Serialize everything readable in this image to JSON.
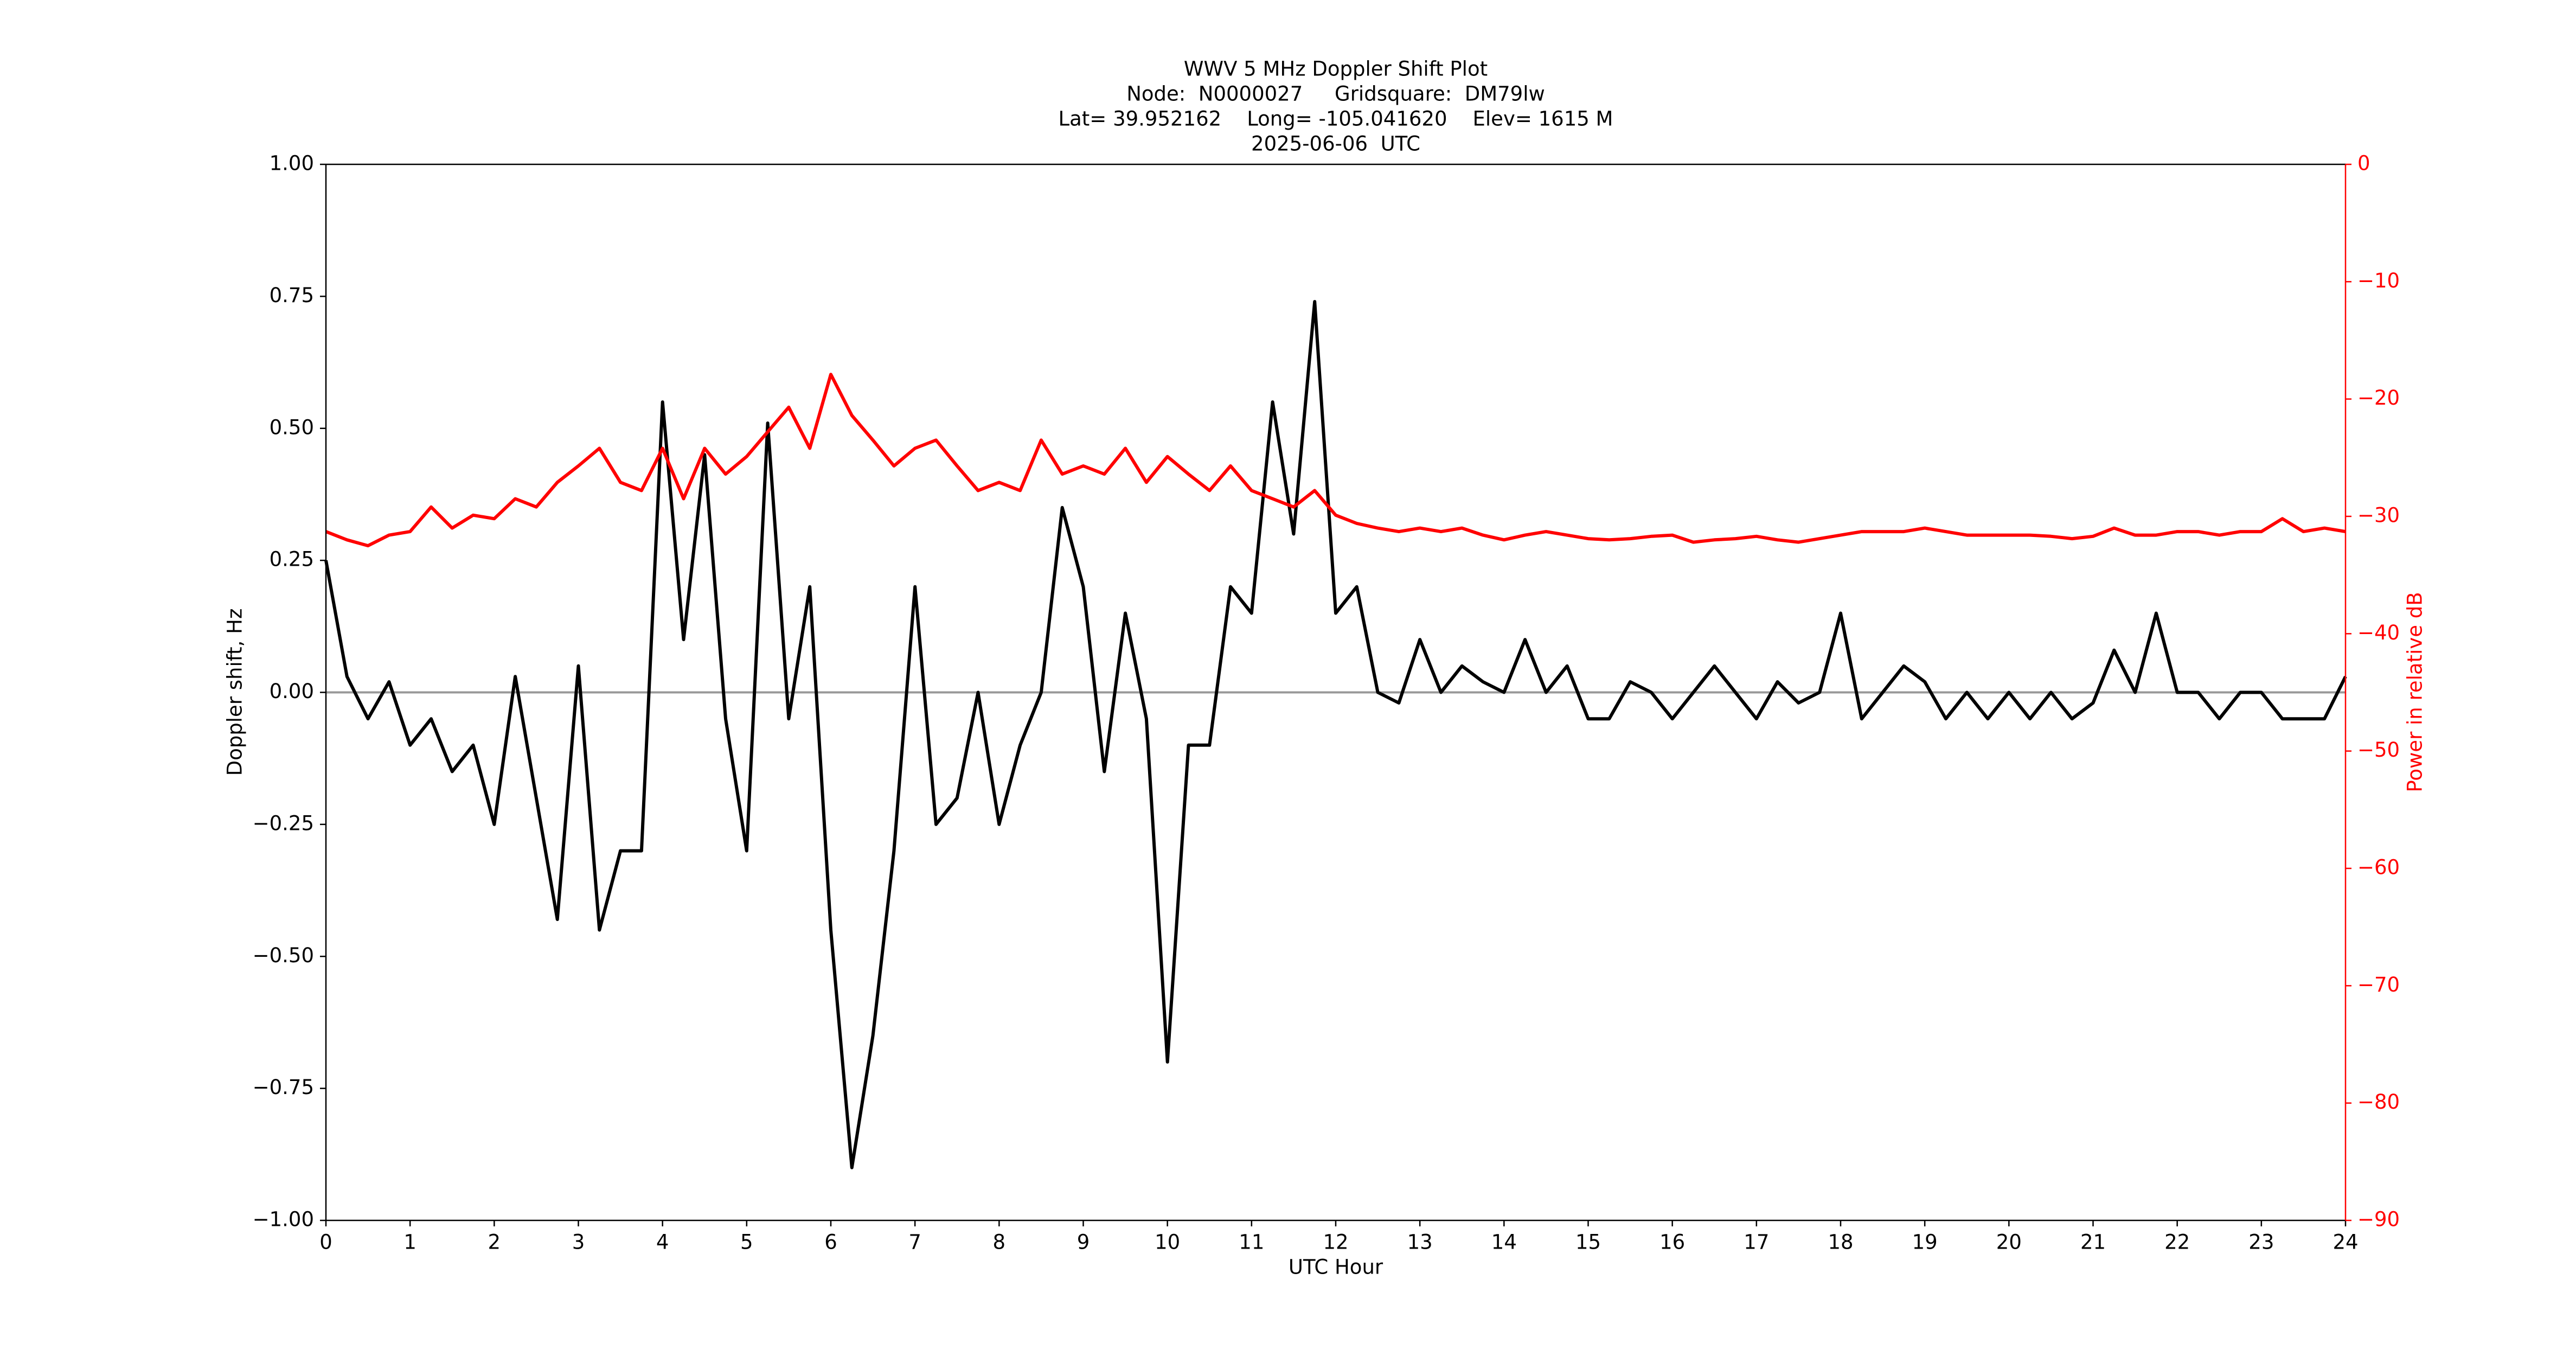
{
  "chart_data": {
    "type": "line",
    "title": "WWV 5 MHz Doppler Shift Plot",
    "subtitle": [
      "Node:  N0000027     Gridsquare:  DM79lw",
      "Lat= 39.952162    Long= -105.041620    Elev= 1615 M",
      "2025-06-06  UTC"
    ],
    "xlabel": "UTC Hour",
    "ylabel": "Doppler shift, Hz",
    "y2label": "Power in relative dB",
    "y2_color": "#ff0000",
    "xlim": [
      0,
      24
    ],
    "xticks": [
      0,
      1,
      2,
      3,
      4,
      5,
      6,
      7,
      8,
      9,
      10,
      11,
      12,
      13,
      14,
      15,
      16,
      17,
      18,
      19,
      20,
      21,
      22,
      23,
      24
    ],
    "ylim": [
      -1,
      1
    ],
    "yticks": [
      {
        "value": -1,
        "label": "−1.00"
      },
      {
        "value": -0.75,
        "label": "−0.75"
      },
      {
        "value": -0.5,
        "label": "−0.50"
      },
      {
        "value": -0.25,
        "label": "−0.25"
      },
      {
        "value": 0,
        "label": "0.00"
      },
      {
        "value": 0.25,
        "label": "0.25"
      },
      {
        "value": 0.5,
        "label": "0.50"
      },
      {
        "value": 0.75,
        "label": "0.75"
      },
      {
        "value": 1,
        "label": "1.00"
      }
    ],
    "y2lim": [
      -90,
      0
    ],
    "y2ticks": [
      {
        "value": -90,
        "label": "−90"
      },
      {
        "value": -80,
        "label": "−80"
      },
      {
        "value": -70,
        "label": "−70"
      },
      {
        "value": -60,
        "label": "−60"
      },
      {
        "value": -50,
        "label": "−50"
      },
      {
        "value": -40,
        "label": "−40"
      },
      {
        "value": -30,
        "label": "−30"
      },
      {
        "value": -20,
        "label": "−20"
      },
      {
        "value": -10,
        "label": "−10"
      },
      0
    ],
    "x": [
      0,
      0.25,
      0.5,
      0.75,
      1,
      1.25,
      1.5,
      1.75,
      2,
      2.25,
      2.5,
      2.75,
      3,
      3.25,
      3.5,
      3.75,
      4,
      4.25,
      4.5,
      4.75,
      5,
      5.25,
      5.5,
      5.75,
      6,
      6.25,
      6.5,
      6.75,
      7,
      7.25,
      7.5,
      7.75,
      8,
      8.25,
      8.5,
      8.75,
      9,
      9.25,
      9.5,
      9.75,
      10,
      10.25,
      10.5,
      10.75,
      11,
      11.25,
      11.5,
      11.75,
      12,
      12.25,
      12.5,
      12.75,
      13,
      13.25,
      13.5,
      13.75,
      14,
      14.25,
      14.5,
      14.75,
      15,
      15.25,
      15.5,
      15.75,
      16,
      16.25,
      16.5,
      16.75,
      17,
      17.25,
      17.5,
      17.75,
      18,
      18.25,
      18.5,
      18.75,
      19,
      19.25,
      19.5,
      19.75,
      20,
      20.25,
      20.5,
      20.75,
      21,
      21.25,
      21.5,
      21.75,
      22,
      22.25,
      22.5,
      22.75,
      23,
      23.25,
      23.5,
      23.75,
      24
    ],
    "series": [
      {
        "color": "#000000",
        "values": [
          0.25,
          0.03,
          -0.05,
          0.02,
          -0.1,
          -0.05,
          -0.15,
          -0.1,
          -0.25,
          0.03,
          -0.2,
          -0.43,
          0.05,
          -0.45,
          -0.3,
          -0.3,
          0.55,
          0.1,
          0.45,
          -0.05,
          -0.3,
          0.51,
          -0.05,
          0.2,
          -0.45,
          -0.9,
          -0.65,
          -0.3,
          0.2,
          -0.25,
          -0.2,
          0.0,
          -0.25,
          -0.1,
          0.0,
          0.35,
          0.2,
          -0.15,
          0.15,
          -0.05,
          -0.7,
          -0.1,
          -0.1,
          0.2,
          0.15,
          0.55,
          0.3,
          0.74,
          0.15,
          0.2,
          0.0,
          -0.02,
          0.1,
          0.0,
          0.05,
          0.02,
          0.0,
          0.1,
          0.0,
          0.05,
          -0.05,
          -0.05,
          0.02,
          0.0,
          -0.05,
          0.0,
          0.05,
          0.0,
          -0.05,
          0.02,
          -0.02,
          0.0,
          0.15,
          -0.05,
          0.0,
          0.05,
          0.02,
          -0.05,
          0.0,
          -0.05,
          0.0,
          -0.05,
          0.0,
          -0.05,
          -0.02,
          0.08,
          0.0,
          0.15,
          0.0,
          0.0,
          -0.05,
          0.0,
          0.0,
          -0.05,
          -0.05,
          -0.05,
          0.03
        ]
      },
      {
        "color": "#ff0000",
        "axis": "y2",
        "values": [
          -31.3,
          -32.0,
          -32.5,
          -31.6,
          -31.3,
          -29.2,
          -31.0,
          -29.9,
          -30.2,
          -28.5,
          -29.2,
          -27.1,
          -25.7,
          -24.2,
          -27.1,
          -27.8,
          -24.2,
          -28.5,
          -24.2,
          -26.4,
          -24.9,
          -22.8,
          -20.7,
          -24.2,
          -17.9,
          -21.4,
          -23.5,
          -25.7,
          -24.2,
          -23.5,
          -25.7,
          -27.8,
          -27.1,
          -27.8,
          -23.5,
          -26.4,
          -25.7,
          -26.4,
          -24.2,
          -27.1,
          -24.9,
          -26.4,
          -27.8,
          -25.7,
          -27.8,
          -28.5,
          -29.2,
          -27.8,
          -29.9,
          -30.6,
          -31.0,
          -31.3,
          -31.0,
          -31.3,
          -31.0,
          -31.6,
          -32.0,
          -31.6,
          -31.3,
          -31.6,
          -31.9,
          -32.0,
          -31.9,
          -31.7,
          -31.6,
          -32.2,
          -32.0,
          -31.9,
          -31.7,
          -32.0,
          -32.2,
          -31.9,
          -31.6,
          -31.3,
          -31.3,
          -31.3,
          -31.0,
          -31.3,
          -31.6,
          -31.6,
          -31.6,
          -31.6,
          -31.7,
          -31.9,
          -31.7,
          -31.0,
          -31.6,
          -31.6,
          -31.3,
          -31.3,
          -31.6,
          -31.3,
          -31.3,
          -30.2,
          -31.3,
          -31.0,
          -31.3
        ]
      }
    ]
  }
}
